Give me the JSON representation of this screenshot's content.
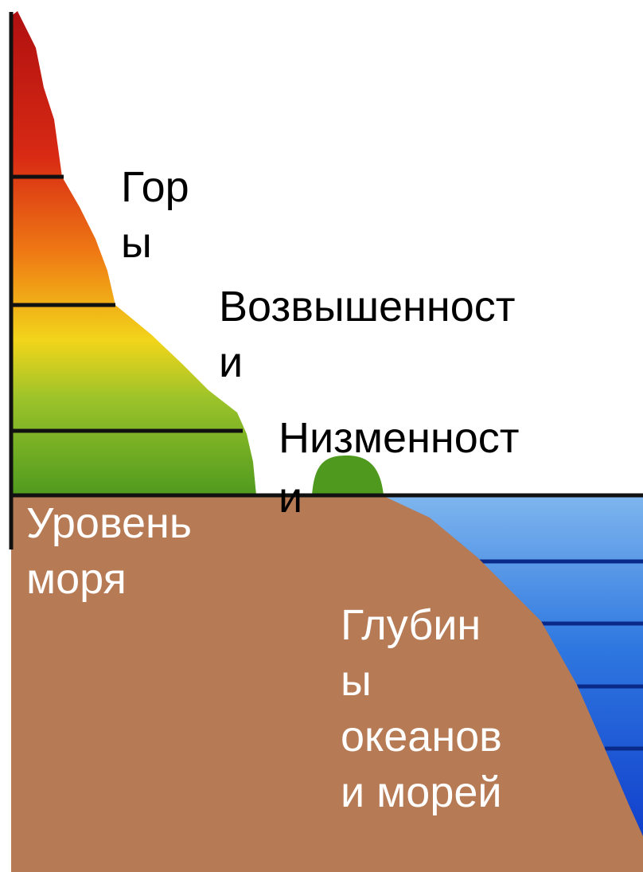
{
  "labels": [
    {
      "lines": [
        "Гор",
        "ы"
      ]
    },
    {
      "lines": [
        "Возвышенност",
        "и"
      ]
    },
    {
      "lines": [
        "Низменност",
        "и"
      ]
    },
    {
      "lines": [
        "Уровень",
        "моря"
      ]
    },
    {
      "lines": [
        "Глубин",
        "ы",
        "океанов",
        "и морей"
      ]
    }
  ]
}
